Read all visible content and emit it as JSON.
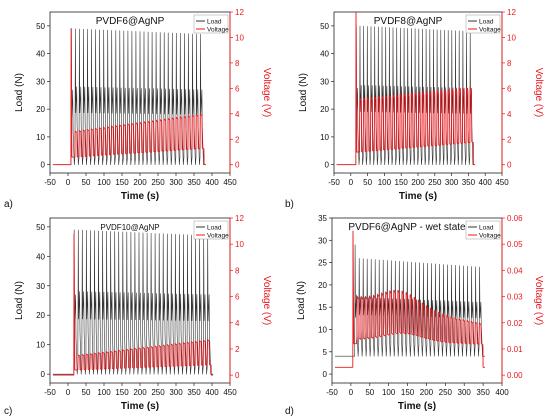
{
  "chart_data": [
    {
      "type": "line",
      "panel_label": "a)",
      "title": "PVDF6@AgNP",
      "xlabel": "Time (s)",
      "ylabel_left": "Load (N)",
      "ylabel_right": "Voltage (V)",
      "xlim": [
        -50,
        450
      ],
      "x_ticks": [
        -50,
        0,
        50,
        100,
        150,
        200,
        250,
        300,
        350,
        400,
        450
      ],
      "ylim_left": [
        -3,
        55
      ],
      "y_ticks_left": [
        0,
        10,
        20,
        30,
        40,
        50
      ],
      "ylim_right": [
        -0.65,
        12
      ],
      "y_ticks_right": [
        0,
        2,
        4,
        6,
        8,
        10,
        12
      ],
      "legend": {
        "position": "top-right",
        "entries": [
          "Load",
          "Voltage"
        ]
      },
      "series": [
        {
          "name": "Load",
          "color": "#333333",
          "axis": "left",
          "pulse_start": 8,
          "pulse_end": 378,
          "n_pulses": 33,
          "baseline": 0,
          "peak": [
            49,
            47
          ],
          "first_peak": 49
        },
        {
          "name": "Voltage",
          "color": "#e8191f",
          "axis": "right",
          "pulse_start": 8,
          "pulse_end": 378,
          "n_pulses": 33,
          "baseline": 0,
          "step_pre": 0,
          "step_post": 0,
          "first_spike": 10.7,
          "peak": [
            2.6,
            4.0
          ],
          "trough": [
            0.6,
            1.3
          ]
        }
      ]
    },
    {
      "type": "line",
      "panel_label": "b)",
      "title": "PVDF8@AgNP",
      "xlabel": "Time (s)",
      "ylabel_left": "Load (N)",
      "ylabel_right": "Voltage (V)",
      "xlim": [
        -50,
        450
      ],
      "x_ticks": [
        -50,
        0,
        50,
        100,
        150,
        200,
        250,
        300,
        350,
        400,
        450
      ],
      "ylim_left": [
        -3,
        55
      ],
      "y_ticks_left": [
        0,
        10,
        20,
        30,
        40,
        50
      ],
      "ylim_right": [
        -0.65,
        12
      ],
      "y_ticks_right": [
        0,
        2,
        4,
        6,
        8,
        10,
        12
      ],
      "legend": {
        "position": "top-right",
        "entries": [
          "Load",
          "Voltage"
        ]
      },
      "series": [
        {
          "name": "Load",
          "color": "#333333",
          "axis": "left",
          "pulse_start": 15,
          "pulse_end": 365,
          "n_pulses": 32,
          "baseline": 0,
          "peak": [
            50,
            48
          ],
          "first_peak": 50
        },
        {
          "name": "Voltage",
          "color": "#e8191f",
          "axis": "right",
          "pulse_start": 15,
          "pulse_end": 365,
          "n_pulses": 32,
          "baseline": 0,
          "step_pre": 0,
          "step_post": 0,
          "first_spike": 12,
          "peak": [
            5.2,
            6.1
          ],
          "trough": [
            1.0,
            1.8
          ]
        }
      ]
    },
    {
      "type": "line",
      "panel_label": "c)",
      "title": "PVDF10@AgNP",
      "xlabel": "Time (s)",
      "ylabel_left": "Load (N)",
      "ylabel_right": "Voltage (V)",
      "xlim": [
        -50,
        450
      ],
      "x_ticks": [
        -50,
        0,
        50,
        100,
        150,
        200,
        250,
        300,
        350,
        400,
        450
      ],
      "ylim_left": [
        -3,
        53
      ],
      "y_ticks_left": [
        0,
        10,
        20,
        30,
        40,
        50
      ],
      "ylim_right": [
        -0.6,
        12
      ],
      "y_ticks_right": [
        0,
        2,
        4,
        6,
        8,
        10,
        12
      ],
      "legend": {
        "position": "top-right",
        "entries": [
          "Load",
          "Voltage"
        ]
      },
      "series": [
        {
          "name": "Load",
          "color": "#333333",
          "axis": "left",
          "pulse_start": 16,
          "pulse_end": 398,
          "n_pulses": 34,
          "baseline": 0,
          "peak": [
            49,
            47
          ],
          "first_peak": 49
        },
        {
          "name": "Voltage",
          "color": "#e8191f",
          "axis": "right",
          "pulse_start": 16,
          "pulse_end": 398,
          "n_pulses": 34,
          "baseline": 0,
          "step_pre": 0,
          "step_post": 0,
          "first_spike": 10.8,
          "peak": [
            1.5,
            2.7
          ],
          "trough": [
            0.4,
            0.8
          ]
        }
      ]
    },
    {
      "type": "line",
      "panel_label": "d)",
      "title": "PVDF6@AgNP - wet state",
      "xlabel": "Time (s)",
      "ylabel_left": "Load (N)",
      "ylabel_right": "Voltage (V)",
      "xlim": [
        -50,
        400
      ],
      "x_ticks": [
        -50,
        0,
        50,
        100,
        150,
        200,
        250,
        300,
        350,
        400
      ],
      "ylim_left": [
        -2,
        35
      ],
      "y_ticks_left": [
        0,
        5,
        10,
        15,
        20,
        25,
        30,
        35
      ],
      "ylim_right": [
        -0.003,
        0.06
      ],
      "y_ticks_right": [
        0.0,
        0.01,
        0.02,
        0.03,
        0.04,
        0.05,
        0.06
      ],
      "legend": {
        "position": "top-right",
        "entries": [
          "Load",
          "Voltage"
        ]
      },
      "series": [
        {
          "name": "Load",
          "color": "#333333",
          "axis": "left",
          "pulse_start": 10,
          "pulse_end": 350,
          "n_pulses": 32,
          "baseline": 4,
          "peak": [
            26,
            24
          ],
          "first_peak": 29
        },
        {
          "name": "Voltage",
          "color": "#e8191f",
          "axis": "right",
          "pulse_start": 5,
          "pulse_end": 350,
          "n_pulses": 32,
          "baseline": 0,
          "step_pre": 0.003,
          "step_post": 0.012,
          "first_spike": 0.055,
          "peak": [
            0.03,
            0.02
          ],
          "trough": [
            0.014,
            0.012
          ],
          "hump": {
            "center": 130,
            "width": 70,
            "amp": 0.006
          }
        }
      ]
    }
  ]
}
